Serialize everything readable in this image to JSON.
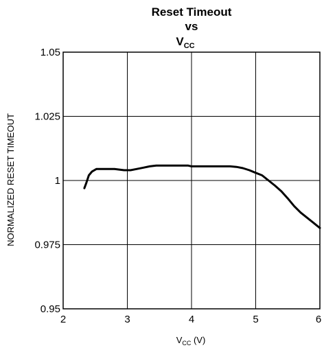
{
  "chart_data": {
    "type": "line",
    "title": {
      "line1": "Reset Timeout",
      "line2": "vs",
      "line3_main": "V",
      "line3_sub": "CC"
    },
    "xlabel": {
      "main": "V",
      "sub": "CC",
      "unit": " (V)"
    },
    "ylabel": "NORMALIZED RESET TIMEOUT",
    "xlim": [
      2,
      6
    ],
    "ylim": [
      0.95,
      1.05
    ],
    "xticks": [
      2,
      3,
      4,
      5,
      6
    ],
    "xtick_labels": [
      "2",
      "3",
      "4",
      "5",
      "6"
    ],
    "yticks": [
      0.95,
      0.975,
      1.0,
      1.025,
      1.05
    ],
    "ytick_labels": [
      "0.95",
      "0.975",
      "1",
      "1.025",
      "1.05"
    ],
    "grid": true,
    "series": [
      {
        "color": "#000000",
        "x": [
          2.33,
          2.36,
          2.4,
          2.45,
          2.52,
          2.6,
          2.8,
          2.95,
          3.05,
          3.15,
          3.25,
          3.35,
          3.45,
          3.6,
          3.8,
          3.95,
          4.0,
          4.2,
          4.4,
          4.6,
          4.7,
          4.8,
          4.9,
          5.0,
          5.1,
          5.2,
          5.3,
          5.4,
          5.5,
          5.6,
          5.7,
          5.8,
          5.9,
          5.95,
          6.0
        ],
        "y": [
          0.997,
          0.999,
          1.002,
          1.0035,
          1.0045,
          1.0045,
          1.0045,
          1.004,
          1.004,
          1.0045,
          1.005,
          1.0055,
          1.0058,
          1.0058,
          1.0058,
          1.0058,
          1.0055,
          1.0055,
          1.0055,
          1.0055,
          1.0053,
          1.0048,
          1.004,
          1.003,
          1.002,
          1.0,
          0.998,
          0.9958,
          0.993,
          0.99,
          0.9875,
          0.9855,
          0.9835,
          0.9825,
          0.9815
        ]
      }
    ]
  }
}
